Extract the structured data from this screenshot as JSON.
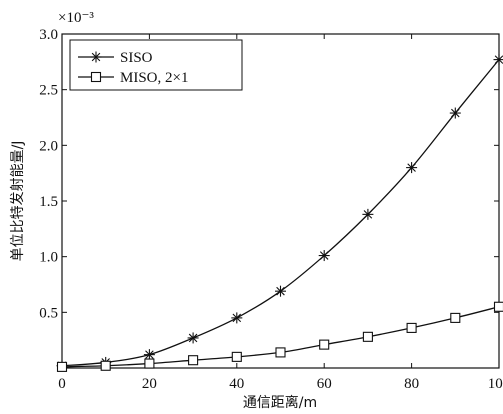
{
  "chart_data": {
    "type": "line",
    "title": "",
    "xlabel": "通信距离/m",
    "ylabel": "单位比特发射能量/J",
    "y_exponent_label": "×10⁻³",
    "xlim": [
      0,
      100
    ],
    "ylim": [
      0,
      3.0
    ],
    "x_ticks": [
      "0",
      "20",
      "40",
      "60",
      "80",
      "100"
    ],
    "y_ticks": [
      "0.5",
      "1.0",
      "1.5",
      "2.0",
      "2.5",
      "3.0"
    ],
    "grid": false,
    "legend_position": "top-left",
    "x": [
      0,
      10,
      20,
      30,
      40,
      50,
      60,
      70,
      80,
      90,
      100
    ],
    "series": [
      {
        "name": "SISO",
        "marker": "asterisk",
        "values": [
          0.02,
          0.05,
          0.12,
          0.27,
          0.45,
          0.69,
          1.01,
          1.38,
          1.8,
          2.29,
          2.77
        ]
      },
      {
        "name": "MISO, 2×1",
        "marker": "square",
        "values": [
          0.01,
          0.02,
          0.04,
          0.07,
          0.1,
          0.14,
          0.21,
          0.28,
          0.36,
          0.45,
          0.55
        ]
      }
    ]
  }
}
